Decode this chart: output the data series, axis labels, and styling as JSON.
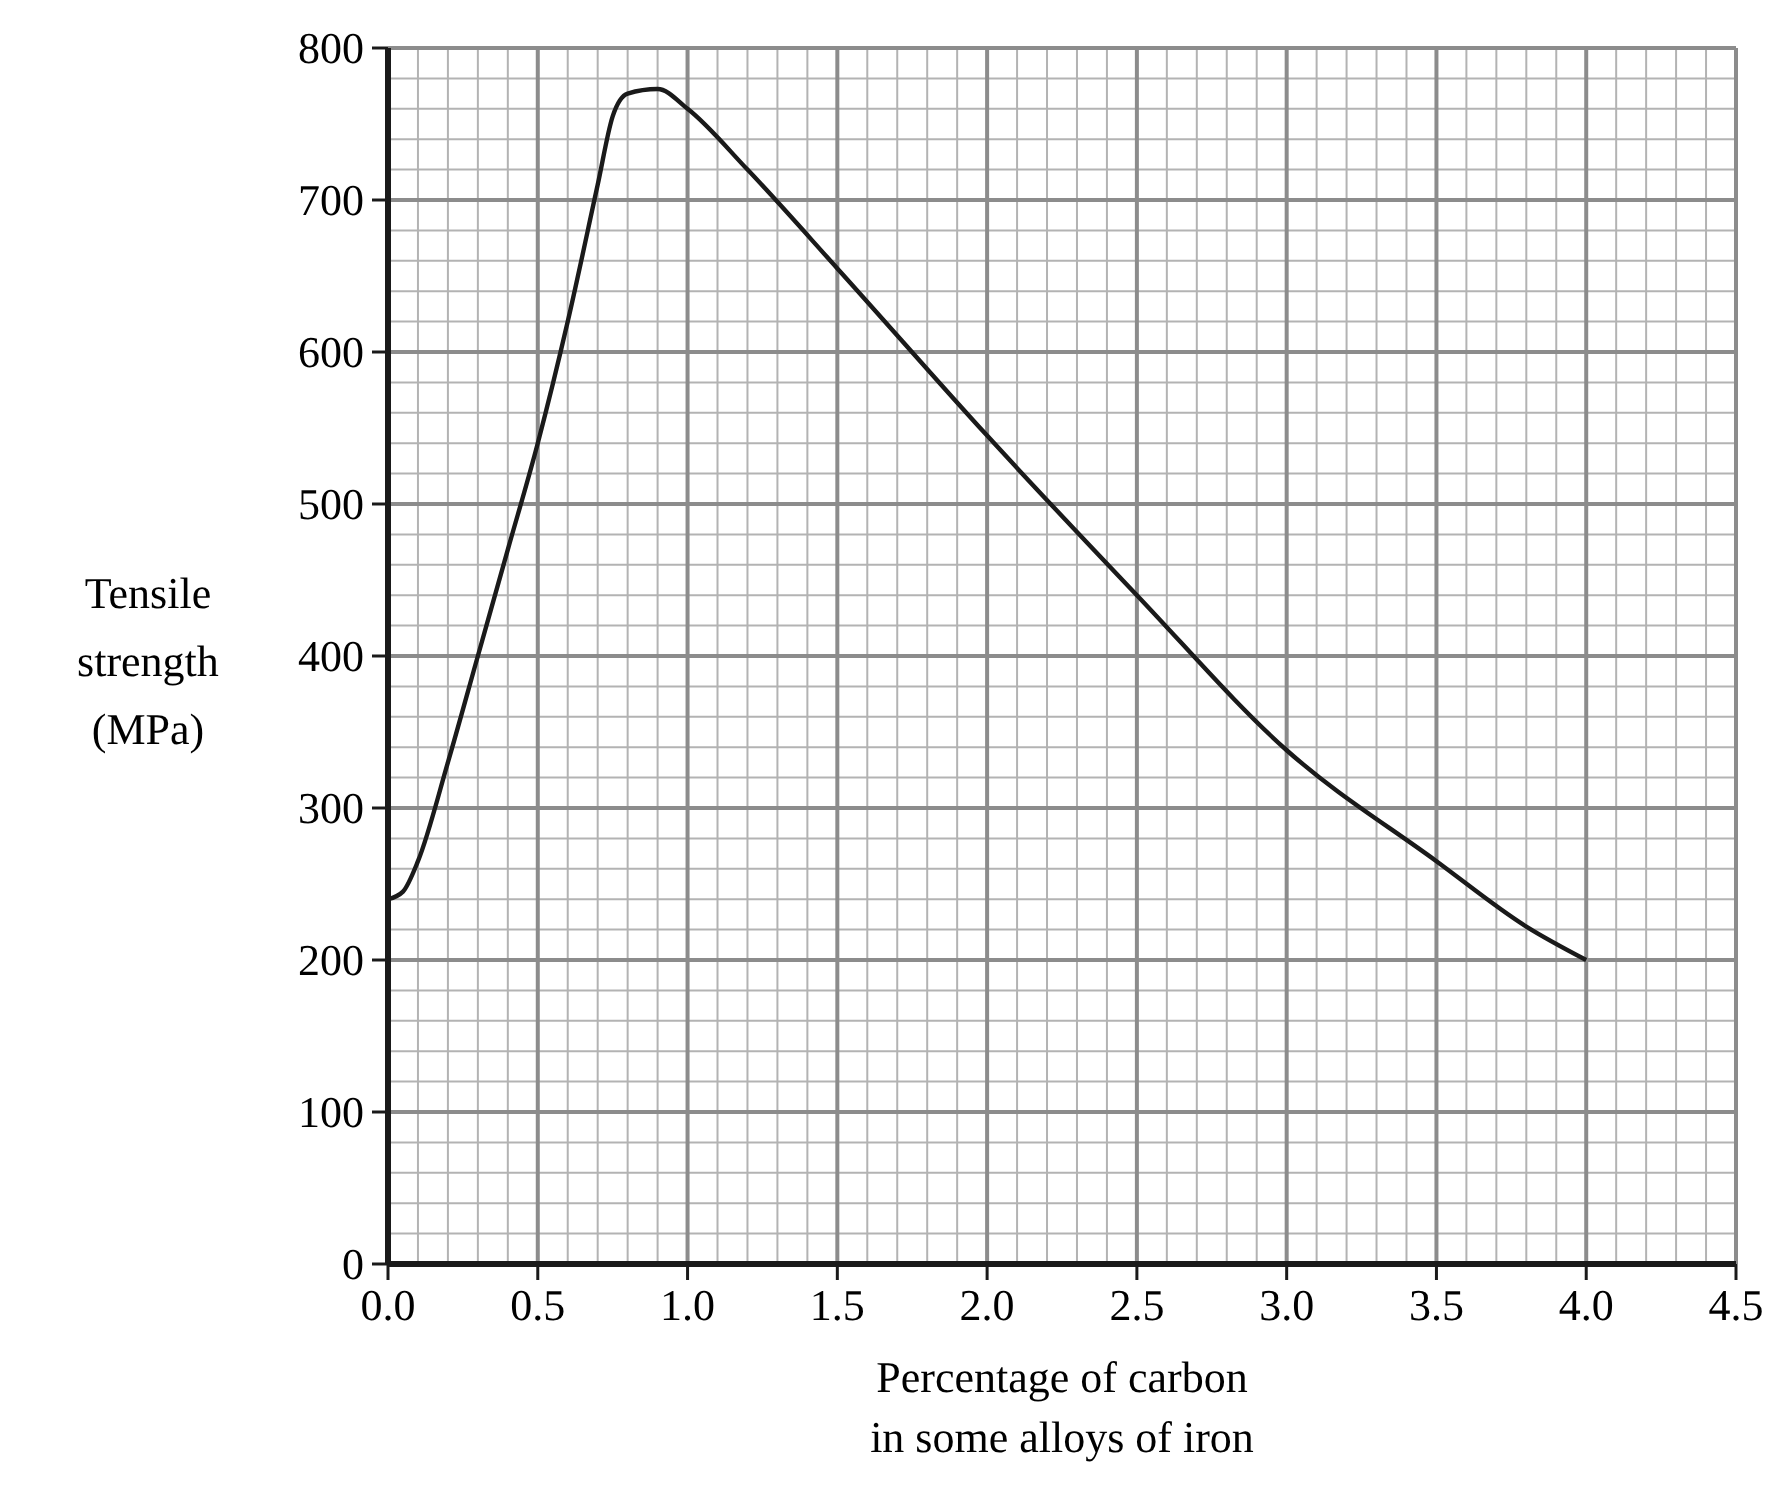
{
  "chart_data": {
    "type": "line",
    "xlabel": "Percentage of carbon\nin some alloys of iron",
    "ylabel": "Tensile\nstrength\n(MPa)",
    "x": [
      0,
      0.05,
      0.1,
      0.2,
      0.3,
      0.4,
      0.5,
      0.6,
      0.7,
      0.75,
      0.8,
      0.9,
      1.0,
      1.2,
      1.5,
      2.0,
      2.5,
      3.0,
      3.5,
      3.8,
      4.0
    ],
    "series": [
      {
        "color": "#1a1a1a",
        "values": [
          240,
          245,
          265,
          330,
          400,
          470,
          540,
          620,
          710,
          755,
          770,
          773,
          760,
          720,
          655,
          545,
          440,
          338,
          265,
          222,
          200
        ]
      }
    ],
    "xlim": [
      0,
      4.5
    ],
    "xticks": [
      {
        "value": 0,
        "label": "0.0"
      },
      0.5,
      {
        "value": 1,
        "label": "1.0"
      },
      1.5,
      {
        "value": 2,
        "label": "2.0"
      },
      2.5,
      {
        "value": 3,
        "label": "3.0"
      },
      3.5,
      {
        "value": 4,
        "label": "4.0"
      },
      4.5
    ],
    "ylim": [
      0,
      800
    ],
    "yticks": [
      0,
      100,
      200,
      300,
      400,
      500,
      600,
      700,
      800
    ],
    "grid": true,
    "marker": "none",
    "line_style": "solid"
  }
}
